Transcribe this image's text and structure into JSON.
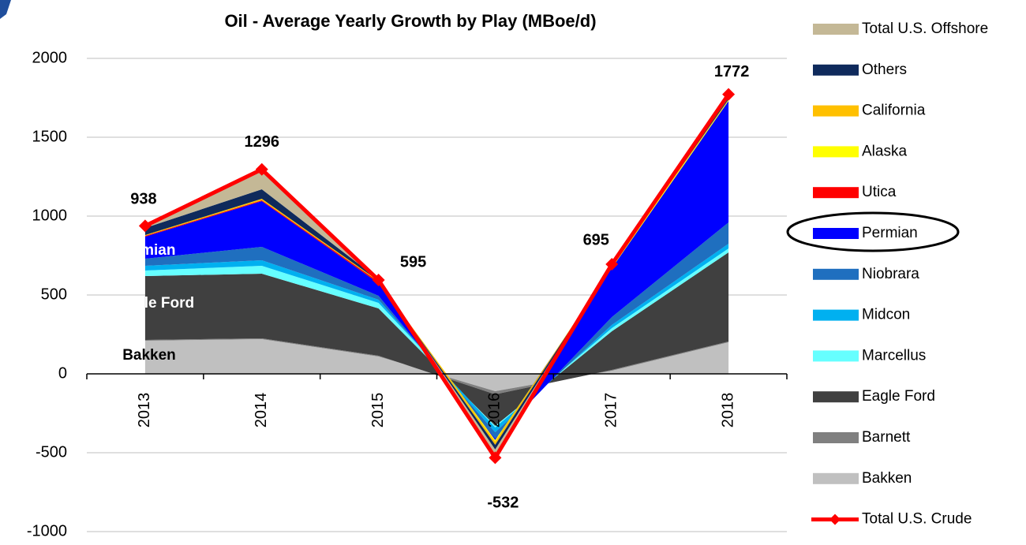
{
  "chart_data": {
    "type": "stacked_area_line",
    "title": "Oil - Average Yearly Growth by Play (MBoe/d)",
    "categories": [
      "2013",
      "2014",
      "2015",
      "2016",
      "2017",
      "2018"
    ],
    "ylim": [
      -1000,
      2000
    ],
    "yticks": [
      -1000,
      -500,
      0,
      500,
      1000,
      1500,
      2000
    ],
    "grid": true,
    "legend": "right",
    "series": [
      {
        "name": "Bakken",
        "color": "#c0c0c0",
        "values": [
          210,
          220,
          110,
          -110,
          20,
          200
        ]
      },
      {
        "name": "Barnett",
        "color": "#808080",
        "values": [
          5,
          5,
          5,
          -20,
          5,
          5
        ]
      },
      {
        "name": "Eagle Ford",
        "color": "#404040",
        "values": [
          405,
          410,
          300,
          -200,
          245,
          565
        ]
      },
      {
        "name": "Marcellus",
        "color": "#66ffff",
        "values": [
          35,
          50,
          35,
          -10,
          20,
          25
        ]
      },
      {
        "name": "Midcon",
        "color": "#00b0f0",
        "values": [
          30,
          35,
          20,
          -30,
          20,
          30
        ]
      },
      {
        "name": "Niobrara",
        "color": "#1f6fbf",
        "values": [
          45,
          85,
          25,
          -40,
          50,
          135
        ]
      },
      {
        "name": "Permian",
        "color": "#0000ff",
        "values": [
          140,
          290,
          80,
          -10,
          310,
          770
        ]
      },
      {
        "name": "Utica",
        "color": "#ff0000",
        "values": [
          5,
          5,
          10,
          0,
          0,
          0
        ]
      },
      {
        "name": "Alaska",
        "color": "#ffff00",
        "values": [
          0,
          0,
          0,
          -10,
          10,
          5
        ]
      },
      {
        "name": "California",
        "color": "#ffc000",
        "values": [
          5,
          10,
          5,
          -20,
          5,
          5
        ]
      },
      {
        "name": "Others",
        "color": "#0f2a5c",
        "values": [
          45,
          60,
          10,
          -30,
          5,
          10
        ]
      },
      {
        "name": "Total U.S. Offshore",
        "color": "#c4b896",
        "values": [
          15,
          125,
          5,
          -50,
          5,
          20
        ]
      }
    ],
    "line": {
      "name": "Total U.S. Crude",
      "color": "#ff0000",
      "values": [
        938,
        1296,
        595,
        -532,
        695,
        1772
      ]
    },
    "annotations": [
      "Permian",
      "Eagle Ford",
      "Bakken"
    ]
  }
}
